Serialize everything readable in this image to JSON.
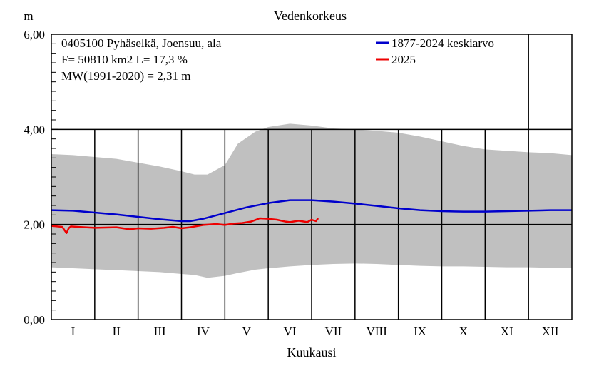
{
  "chart_data": {
    "type": "line",
    "title": "Vedenkorkeus",
    "ylabel": "m",
    "xlabel": "Kuukausi",
    "ylim": [
      0,
      6
    ],
    "yticks": [
      "0,00",
      "2,00",
      "4,00",
      "6,00"
    ],
    "months": [
      "I",
      "II",
      "III",
      "IV",
      "V",
      "VI",
      "VII",
      "VIII",
      "IX",
      "X",
      "XI",
      "XII"
    ],
    "info_lines": [
      "0405100 Pyhäselkä, Joensuu, ala",
      "F=  50810 km2 L=  17,3 %",
      "MW(1991-2020) = 2,31 m"
    ],
    "grid": true,
    "legend_position": "top-right",
    "colors": {
      "mean": "#0000cc",
      "current": "#ee0000",
      "range": "#c0c0c0"
    },
    "range_band": {
      "name": "min-max range",
      "x": [
        0.0,
        0.5,
        1.0,
        1.5,
        2.0,
        2.5,
        3.0,
        3.3,
        3.6,
        4.0,
        4.3,
        4.7,
        5.0,
        5.5,
        6.0,
        6.5,
        7.0,
        7.5,
        8.0,
        8.5,
        9.0,
        9.5,
        10.0,
        10.5,
        11.0,
        11.5,
        12.0
      ],
      "upper": [
        3.48,
        3.46,
        3.42,
        3.38,
        3.3,
        3.22,
        3.12,
        3.05,
        3.05,
        3.25,
        3.7,
        3.95,
        4.05,
        4.12,
        4.08,
        4.02,
        4.0,
        3.97,
        3.93,
        3.85,
        3.75,
        3.65,
        3.58,
        3.55,
        3.52,
        3.5,
        3.46
      ],
      "lower": [
        1.1,
        1.08,
        1.06,
        1.04,
        1.02,
        1.0,
        0.96,
        0.94,
        0.88,
        0.92,
        0.98,
        1.05,
        1.08,
        1.12,
        1.15,
        1.17,
        1.18,
        1.17,
        1.15,
        1.13,
        1.12,
        1.12,
        1.11,
        1.1,
        1.1,
        1.09,
        1.08
      ]
    },
    "series": [
      {
        "name": "1877-2024 keskiarvo",
        "x": [
          0.0,
          0.5,
          1.0,
          1.5,
          2.0,
          2.5,
          3.0,
          3.2,
          3.5,
          4.0,
          4.5,
          5.0,
          5.5,
          6.0,
          6.5,
          7.0,
          7.5,
          8.0,
          8.5,
          9.0,
          9.5,
          10.0,
          10.5,
          11.0,
          11.5,
          12.0
        ],
        "y": [
          2.3,
          2.29,
          2.25,
          2.21,
          2.16,
          2.11,
          2.07,
          2.07,
          2.12,
          2.24,
          2.36,
          2.45,
          2.51,
          2.51,
          2.48,
          2.44,
          2.39,
          2.34,
          2.3,
          2.28,
          2.27,
          2.27,
          2.28,
          2.29,
          2.3,
          2.3
        ]
      },
      {
        "name": "2025",
        "x": [
          0.0,
          0.25,
          0.35,
          0.4,
          0.45,
          0.6,
          1.0,
          1.5,
          1.8,
          2.0,
          2.3,
          2.6,
          2.8,
          3.0,
          3.2,
          3.5,
          3.8,
          4.0,
          4.2,
          4.4,
          4.6,
          4.75,
          4.8,
          5.0,
          5.2,
          5.4,
          5.5,
          5.7,
          5.9,
          6.0,
          6.1,
          6.15
        ],
        "y": [
          1.97,
          1.95,
          1.82,
          1.92,
          1.96,
          1.95,
          1.93,
          1.94,
          1.9,
          1.92,
          1.91,
          1.93,
          1.95,
          1.92,
          1.94,
          1.99,
          2.01,
          1.99,
          2.02,
          2.03,
          2.06,
          2.11,
          2.13,
          2.12,
          2.1,
          2.06,
          2.05,
          2.08,
          2.05,
          2.1,
          2.07,
          2.13
        ]
      }
    ]
  }
}
